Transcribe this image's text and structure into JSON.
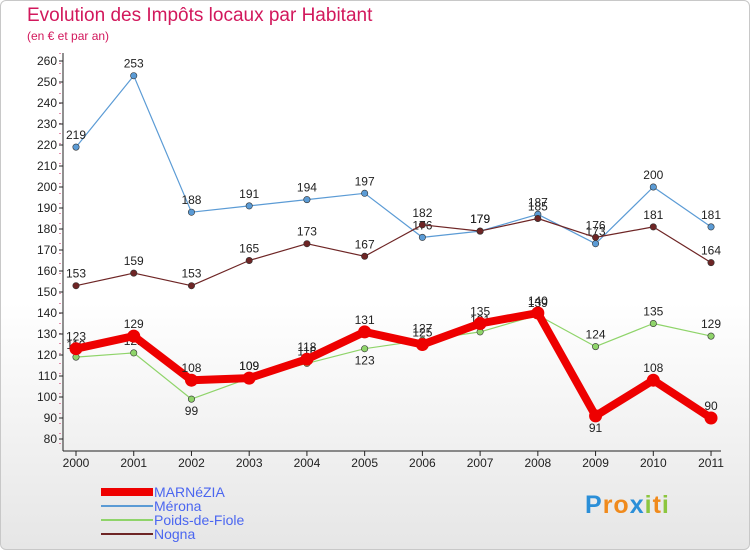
{
  "header": {
    "title": "Evolution des Impôts locaux par Habitant",
    "subtitle": "(en € et par an)"
  },
  "chart_data": {
    "type": "line",
    "title": "Evolution des Impôts locaux par Habitant",
    "subtitle": "(en € et par an)",
    "xlabel": "",
    "ylabel": "",
    "ylim": [
      80,
      260
    ],
    "ytick_step": 10,
    "grid": false,
    "legend_position": "bottom-left",
    "categories": [
      "2000",
      "2001",
      "2002",
      "2003",
      "2004",
      "2005",
      "2006",
      "2007",
      "2008",
      "2009",
      "2010",
      "2011"
    ],
    "series": [
      {
        "key": "merona",
        "name": "Mérona",
        "color": "#5b9bd5",
        "values": [
          219,
          253,
          188,
          191,
          194,
          197,
          176,
          179,
          187,
          173,
          200,
          181
        ]
      },
      {
        "key": "nogna",
        "name": "Nogna",
        "color": "#6e2525",
        "values": [
          153,
          159,
          153,
          165,
          173,
          167,
          182,
          179,
          185,
          176,
          181,
          164
        ]
      },
      {
        "key": "poids",
        "name": "Poids-de-Fiole",
        "color": "#8fd46a",
        "values": [
          119,
          121,
          99,
          109,
          116,
          123,
          127,
          131,
          139,
          124,
          135,
          129
        ]
      },
      {
        "key": "marnezia",
        "name": "MARNéZIA",
        "color": "#ee0000",
        "values": [
          123,
          129,
          108,
          109,
          118,
          131,
          125,
          135,
          140,
          91,
          108,
          90
        ]
      }
    ]
  },
  "legend": {
    "items": [
      {
        "label": "MARNéZIA",
        "color": "#ee0000"
      },
      {
        "label": "Mérona",
        "color": "#5b9bd5"
      },
      {
        "label": "Poids-de-Fiole",
        "color": "#8fd46a"
      },
      {
        "label": "Nogna",
        "color": "#6e2525"
      }
    ]
  },
  "logo": {
    "text": "Proxiti",
    "letters": [
      "P",
      "r",
      "o",
      "x",
      "i",
      "t",
      "i"
    ],
    "letter_colors": [
      "#2b8fd8",
      "#f08a1c",
      "#f08a1c",
      "#2b8fd8",
      "#8cc63f",
      "#f08a1c",
      "#8cc63f"
    ]
  }
}
